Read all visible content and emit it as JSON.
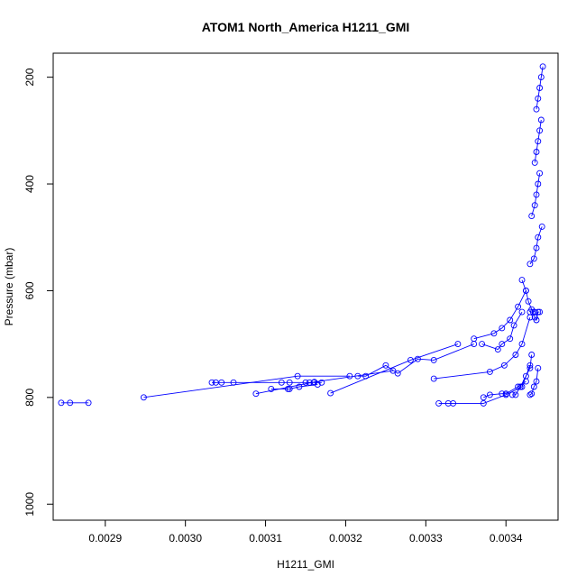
{
  "chart_data": {
    "type": "scatter",
    "title": "ATOM1 North_America H1211_GMI",
    "xlabel": "H1211_GMI",
    "ylabel": "Pressure (mbar)",
    "xlim": [
      0.002835,
      0.003465
    ],
    "ylim": [
      1030,
      155
    ],
    "y_reversed": true,
    "x_ticks": [
      0.0029,
      0.003,
      0.0031,
      0.0032,
      0.0033,
      0.0034
    ],
    "x_tick_labels": [
      "0.0029",
      "0.0030",
      "0.0031",
      "0.0032",
      "0.0033",
      "0.0034"
    ],
    "y_ticks": [
      200,
      400,
      600,
      800,
      1000
    ],
    "y_tick_labels": [
      "200",
      "400",
      "600",
      "800",
      "1000"
    ],
    "grid": false,
    "series_color": "#0000ff",
    "series": [
      {
        "x": [
          0.002845,
          0.002856,
          0.002879
        ],
        "y": [
          810,
          810,
          810
        ]
      },
      {
        "x": [
          0.002948,
          0.00314,
          0.003205
        ],
        "y": [
          800,
          760,
          760
        ]
      },
      {
        "x": [
          0.003088,
          0.003161,
          0.003259
        ],
        "y": [
          793,
          771,
          750
        ]
      },
      {
        "x": [
          0.003181,
          0.003281,
          0.00334
        ],
        "y": [
          792,
          730,
          700
        ]
      },
      {
        "x": [
          0.003033,
          0.003038,
          0.003045,
          0.00306,
          0.00312,
          0.00313,
          0.00315,
          0.003155,
          0.00316,
          0.00317
        ],
        "y": [
          772,
          772,
          772,
          772,
          772,
          772,
          772,
          772,
          772,
          772
        ]
      },
      {
        "x": [
          0.003107,
          0.003128,
          0.00313,
          0.003142,
          0.003165
        ],
        "y": [
          784,
          784,
          784,
          780,
          776
        ]
      },
      {
        "x": [
          0.003215,
          0.003225,
          0.00325,
          0.003265,
          0.00329,
          0.00331,
          0.00336
        ],
        "y": [
          760,
          760,
          740,
          755,
          728,
          730,
          700
        ]
      },
      {
        "x": [
          0.003316,
          0.003328,
          0.003334,
          0.003372,
          0.0034,
          0.00342,
          0.00343
        ],
        "y": [
          811,
          811,
          811,
          811,
          795,
          780,
          740
        ]
      },
      {
        "x": [
          0.00331,
          0.00338,
          0.003398,
          0.003412,
          0.00342,
          0.00343
        ],
        "y": [
          765,
          752,
          740,
          720,
          700,
          650
        ]
      },
      {
        "x": [
          0.00336,
          0.003385,
          0.003395,
          0.003405,
          0.003415,
          0.003425
        ],
        "y": [
          690,
          680,
          670,
          655,
          630,
          600
        ]
      },
      {
        "x": [
          0.00337,
          0.00339,
          0.003395,
          0.003405,
          0.00341,
          0.00342
        ],
        "y": [
          700,
          710,
          700,
          690,
          665,
          640
        ]
      },
      {
        "x": [
          0.003372,
          0.00338,
          0.003395,
          0.0034,
          0.003415,
          0.003425
        ],
        "y": [
          800,
          795,
          793,
          793,
          780,
          770
        ]
      },
      {
        "x": [
          0.003408,
          0.003412,
          0.003418,
          0.003425,
          0.00343,
          0.003432
        ],
        "y": [
          795,
          795,
          780,
          760,
          745,
          720
        ]
      },
      {
        "x": [
          0.00343,
          0.003432,
          0.003435,
          0.003438,
          0.00344
        ],
        "y": [
          795,
          793,
          780,
          770,
          745
        ]
      },
      {
        "x": [
          0.00343,
          0.003434,
          0.003436,
          0.003438,
          0.00344,
          0.003442
        ],
        "y": [
          640,
          640,
          650,
          655,
          640,
          640
        ]
      },
      {
        "x": [
          0.00342,
          0.003425,
          0.003428,
          0.003432,
          0.003436
        ],
        "y": [
          580,
          600,
          620,
          635,
          640
        ]
      },
      {
        "x": [
          0.00343,
          0.003435,
          0.003438,
          0.00344,
          0.003445
        ],
        "y": [
          550,
          540,
          520,
          500,
          480
        ]
      },
      {
        "x": [
          0.003432,
          0.003436,
          0.003438,
          0.00344,
          0.003442
        ],
        "y": [
          460,
          440,
          420,
          400,
          380
        ]
      },
      {
        "x": [
          0.003436,
          0.003438,
          0.00344,
          0.003442,
          0.003444
        ],
        "y": [
          360,
          340,
          320,
          300,
          280
        ]
      },
      {
        "x": [
          0.003438,
          0.00344,
          0.003442,
          0.003444,
          0.003446
        ],
        "y": [
          260,
          240,
          220,
          200,
          180
        ]
      }
    ]
  }
}
